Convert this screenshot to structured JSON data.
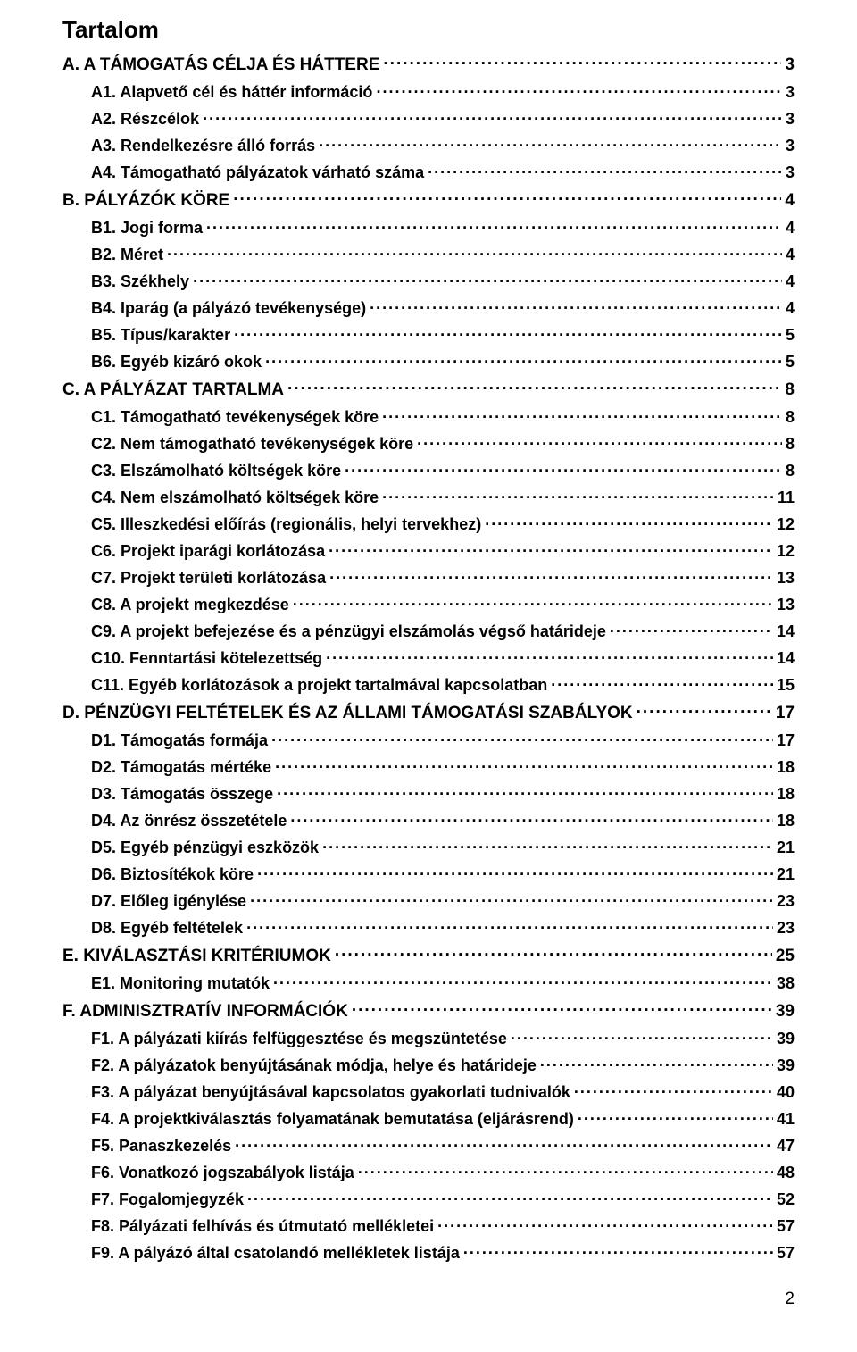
{
  "title": "Tartalom",
  "page_number": "2",
  "toc": [
    {
      "level": 1,
      "label": "A.",
      "text": "A TÁMOGATÁS CÉLJA ÉS HÁTTERE",
      "page": "3"
    },
    {
      "level": 2,
      "label": "A1.",
      "text": "Alapvető cél és háttér információ",
      "page": "3"
    },
    {
      "level": 2,
      "label": "A2.",
      "text": "Részcélok",
      "page": "3"
    },
    {
      "level": 2,
      "label": "A3.",
      "text": "Rendelkezésre álló forrás",
      "page": "3"
    },
    {
      "level": 2,
      "label": "A4.",
      "text": "Támogatható pályázatok várható száma",
      "page": "3"
    },
    {
      "level": 1,
      "label": "B.",
      "text": "PÁLYÁZÓK KÖRE",
      "page": "4"
    },
    {
      "level": 2,
      "label": "B1.",
      "text": "Jogi forma",
      "page": "4"
    },
    {
      "level": 2,
      "label": "B2.",
      "text": "Méret",
      "page": "4"
    },
    {
      "level": 2,
      "label": "B3.",
      "text": "Székhely",
      "page": "4"
    },
    {
      "level": 2,
      "label": "B4.",
      "text": "Iparág (a pályázó tevékenysége)",
      "page": "4"
    },
    {
      "level": 2,
      "label": "B5.",
      "text": "Típus/karakter",
      "page": "5"
    },
    {
      "level": 2,
      "label": "B6.",
      "text": "Egyéb kizáró okok",
      "page": "5"
    },
    {
      "level": 1,
      "label": "C.",
      "text": "A PÁLYÁZAT TARTALMA",
      "page": "8"
    },
    {
      "level": 2,
      "label": "C1.",
      "text": "Támogatható tevékenységek köre",
      "page": "8"
    },
    {
      "level": 2,
      "label": "C2.",
      "text": "Nem támogatható tevékenységek köre",
      "page": "8"
    },
    {
      "level": 2,
      "label": "C3.",
      "text": "Elszámolható költségek köre",
      "page": "8"
    },
    {
      "level": 2,
      "label": "C4.",
      "text": "Nem elszámolható költségek köre",
      "page": "11"
    },
    {
      "level": 2,
      "label": "C5.",
      "text": "Illeszkedési előírás (regionális, helyi tervekhez)",
      "page": "12"
    },
    {
      "level": 2,
      "label": "C6.",
      "text": "Projekt iparági korlátozása",
      "page": "12"
    },
    {
      "level": 2,
      "label": "C7.",
      "text": "Projekt területi korlátozása",
      "page": "13"
    },
    {
      "level": 2,
      "label": "C8.",
      "text": "A projekt megkezdése",
      "page": "13"
    },
    {
      "level": 2,
      "label": "C9.",
      "text": "A projekt befejezése és a pénzügyi elszámolás végső határideje",
      "page": "14"
    },
    {
      "level": 2,
      "label": "C10.",
      "text": "Fenntartási kötelezettség",
      "page": "14"
    },
    {
      "level": 2,
      "label": "C11.",
      "text": "Egyéb korlátozások a projekt tartalmával kapcsolatban",
      "page": "15"
    },
    {
      "level": 1,
      "label": "D.",
      "text": "PÉNZÜGYI FELTÉTELEK ÉS AZ ÁLLAMI TÁMOGATÁSI SZABÁLYOK",
      "page": "17"
    },
    {
      "level": 2,
      "label": "D1.",
      "text": "Támogatás formája",
      "page": "17"
    },
    {
      "level": 2,
      "label": "D2.",
      "text": "Támogatás mértéke",
      "page": "18"
    },
    {
      "level": 2,
      "label": "D3.",
      "text": "Támogatás összege",
      "page": "18"
    },
    {
      "level": 2,
      "label": "D4.",
      "text": "Az önrész összetétele",
      "page": "18"
    },
    {
      "level": 2,
      "label": "D5.",
      "text": "Egyéb pénzügyi eszközök",
      "page": "21"
    },
    {
      "level": 2,
      "label": "D6.",
      "text": "Biztosítékok köre",
      "page": "21"
    },
    {
      "level": 2,
      "label": "D7.",
      "text": "Előleg igénylése",
      "page": "23"
    },
    {
      "level": 2,
      "label": "D8.",
      "text": "Egyéb feltételek",
      "page": "23"
    },
    {
      "level": 1,
      "label": "E.",
      "text": "KIVÁLASZTÁSI KRITÉRIUMOK",
      "page": "25"
    },
    {
      "level": 2,
      "label": "E1.",
      "text": "Monitoring mutatók",
      "page": "38"
    },
    {
      "level": 1,
      "label": "F.",
      "text": "ADMINISZTRATÍV INFORMÁCIÓK",
      "page": "39"
    },
    {
      "level": 2,
      "label": "F1.",
      "text": "A pályázati kiírás felfüggesztése és megszüntetése",
      "page": "39"
    },
    {
      "level": 2,
      "label": "F2.",
      "text": "A pályázatok benyújtásának módja, helye és határideje",
      "page": "39"
    },
    {
      "level": 2,
      "label": "F3.",
      "text": "A pályázat benyújtásával kapcsolatos gyakorlati tudnivalók",
      "page": "40"
    },
    {
      "level": 2,
      "label": "F4.",
      "text": "A projektkiválasztás folyamatának bemutatása (eljárásrend)",
      "page": "41"
    },
    {
      "level": 2,
      "label": "F5.",
      "text": "Panaszkezelés",
      "page": "47"
    },
    {
      "level": 2,
      "label": "F6.",
      "text": "Vonatkozó jogszabályok listája",
      "page": "48"
    },
    {
      "level": 2,
      "label": "F7.",
      "text": "Fogalomjegyzék",
      "page": "52"
    },
    {
      "level": 2,
      "label": "F8.",
      "text": "Pályázati felhívás és útmutató mellékletei",
      "page": "57"
    },
    {
      "level": 2,
      "label": "F9.",
      "text": "A pályázó által csatolandó mellékletek listája",
      "page": "57"
    }
  ]
}
